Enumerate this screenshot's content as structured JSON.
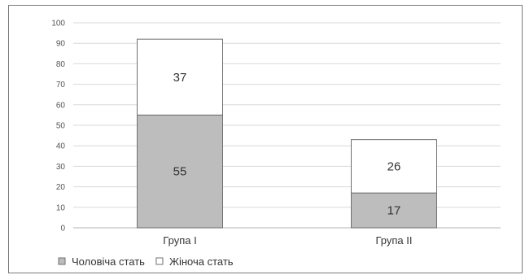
{
  "chart_data": {
    "type": "bar",
    "stacked": true,
    "categories": [
      "Група І",
      "Група ІІ"
    ],
    "series": [
      {
        "name": "Чоловіча стать",
        "values": [
          55,
          17
        ],
        "color": "#bdbdbd"
      },
      {
        "name": "Жіноча стать",
        "values": [
          37,
          26
        ],
        "color": "#ffffff"
      }
    ],
    "ylim": [
      0,
      100
    ],
    "yticks": [
      0,
      10,
      20,
      30,
      40,
      50,
      60,
      70,
      80,
      90,
      100
    ],
    "grid": true,
    "legend_position": "bottom-left",
    "title": "",
    "xlabel": "",
    "ylabel": ""
  }
}
